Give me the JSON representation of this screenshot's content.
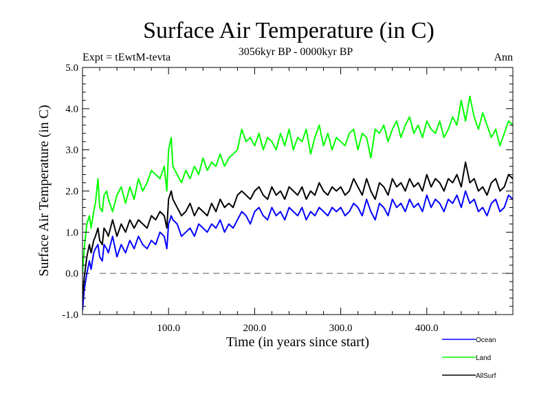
{
  "chart_data": {
    "type": "line",
    "title": "Surface Air Temperature (in C)",
    "subtitle": "3056kyr BP - 0000kyr BP",
    "left_label": "Expt = tEwtM-tevta",
    "right_label": "Ann",
    "xlabel": "Time (in years since start)",
    "ylabel": "Surface Air Temperature (in C)",
    "xlim": [
      0,
      500
    ],
    "ylim": [
      -1.0,
      5.0
    ],
    "x_ticks": [
      100,
      200,
      300,
      400
    ],
    "x_tick_labels": [
      "100.0",
      "200.0",
      "300.0",
      "400.0"
    ],
    "x_minor_step": 20,
    "y_ticks": [
      -1.0,
      0.0,
      1.0,
      2.0,
      3.0,
      4.0,
      5.0
    ],
    "y_tick_labels": [
      "-1.0",
      "0.0",
      "1.0",
      "2.0",
      "3.0",
      "4.0",
      "5.0"
    ],
    "y_minor_step": 0.2,
    "reference_line": {
      "y": 0.0,
      "style": "dashed",
      "color": "#555555"
    },
    "grid": false,
    "legend": {
      "placement": "bottom-right-outside"
    },
    "x": [
      0,
      2,
      5,
      8,
      10,
      13,
      15,
      18,
      20,
      23,
      25,
      28,
      30,
      35,
      40,
      45,
      50,
      55,
      60,
      65,
      70,
      75,
      80,
      85,
      90,
      95,
      98,
      100,
      103,
      105,
      110,
      115,
      120,
      125,
      130,
      135,
      140,
      145,
      150,
      155,
      160,
      165,
      170,
      175,
      180,
      185,
      190,
      195,
      200,
      205,
      210,
      215,
      220,
      225,
      230,
      235,
      240,
      245,
      250,
      255,
      260,
      265,
      270,
      275,
      280,
      285,
      290,
      295,
      300,
      305,
      310,
      315,
      320,
      325,
      330,
      335,
      340,
      345,
      350,
      355,
      360,
      365,
      370,
      375,
      380,
      385,
      390,
      395,
      400,
      405,
      410,
      415,
      420,
      425,
      430,
      435,
      440,
      445,
      450,
      455,
      460,
      465,
      470,
      475,
      480,
      485,
      490,
      495,
      500
    ],
    "series": [
      {
        "name": "Ocean",
        "color": "#0000ff",
        "values": [
          -0.9,
          -0.4,
          0.0,
          0.3,
          0.1,
          0.5,
          0.6,
          0.7,
          0.4,
          0.3,
          0.7,
          0.6,
          0.5,
          0.9,
          0.4,
          0.7,
          0.5,
          0.8,
          0.6,
          0.9,
          0.7,
          0.6,
          0.8,
          0.7,
          1.0,
          0.9,
          0.6,
          1.2,
          1.4,
          1.3,
          1.2,
          0.9,
          1.0,
          1.1,
          0.9,
          1.2,
          1.1,
          1.0,
          1.2,
          1.1,
          1.3,
          1.0,
          1.2,
          1.1,
          1.3,
          1.5,
          1.4,
          1.2,
          1.5,
          1.6,
          1.4,
          1.3,
          1.6,
          1.4,
          1.5,
          1.3,
          1.6,
          1.5,
          1.4,
          1.6,
          1.3,
          1.5,
          1.4,
          1.6,
          1.5,
          1.4,
          1.6,
          1.5,
          1.6,
          1.4,
          1.5,
          1.7,
          1.6,
          1.4,
          1.8,
          1.5,
          1.3,
          1.7,
          1.6,
          1.4,
          1.8,
          1.6,
          1.7,
          1.5,
          1.8,
          1.6,
          1.7,
          1.5,
          1.9,
          1.6,
          1.8,
          1.7,
          1.5,
          1.8,
          1.7,
          1.9,
          1.6,
          2.0,
          1.7,
          1.8,
          1.5,
          1.6,
          1.4,
          1.7,
          1.8,
          1.5,
          1.6,
          1.9,
          1.8
        ]
      },
      {
        "name": "Land",
        "color": "#00ff00",
        "values": [
          0.0,
          0.6,
          1.2,
          1.4,
          1.1,
          1.5,
          1.7,
          2.3,
          1.6,
          1.5,
          1.9,
          2.0,
          1.8,
          1.5,
          1.9,
          2.1,
          1.7,
          2.1,
          1.8,
          2.3,
          2.0,
          2.2,
          2.5,
          2.4,
          2.3,
          2.6,
          2.0,
          3.0,
          3.3,
          2.6,
          2.4,
          2.2,
          2.5,
          2.3,
          2.6,
          2.4,
          2.8,
          2.5,
          2.7,
          2.6,
          2.9,
          2.6,
          2.8,
          2.9,
          3.0,
          3.5,
          3.2,
          3.3,
          3.1,
          3.4,
          3.0,
          3.3,
          3.2,
          3.0,
          3.4,
          3.1,
          3.5,
          3.0,
          3.3,
          3.2,
          3.5,
          2.9,
          3.3,
          3.6,
          3.1,
          3.4,
          3.0,
          3.3,
          3.2,
          3.1,
          3.4,
          3.5,
          3.0,
          3.4,
          3.3,
          2.8,
          3.5,
          3.4,
          3.6,
          3.2,
          3.5,
          3.7,
          3.3,
          3.6,
          3.8,
          3.4,
          3.6,
          3.3,
          3.7,
          3.5,
          3.4,
          3.7,
          3.3,
          3.5,
          3.8,
          3.6,
          4.2,
          3.7,
          4.3,
          3.8,
          3.5,
          3.9,
          3.6,
          3.3,
          3.5,
          3.1,
          3.4,
          3.7,
          3.6
        ]
      },
      {
        "name": "AllSurf",
        "color": "#000000",
        "values": [
          -0.6,
          -0.1,
          0.4,
          0.7,
          0.5,
          0.8,
          0.9,
          1.1,
          0.8,
          0.7,
          1.1,
          1.0,
          0.9,
          1.3,
          0.9,
          1.2,
          1.0,
          1.3,
          1.1,
          1.3,
          1.2,
          1.1,
          1.4,
          1.3,
          1.5,
          1.4,
          1.1,
          1.8,
          2.0,
          1.8,
          1.6,
          1.4,
          1.5,
          1.7,
          1.4,
          1.6,
          1.5,
          1.4,
          1.7,
          1.5,
          1.8,
          1.6,
          1.7,
          1.6,
          1.9,
          2.0,
          1.9,
          1.8,
          2.0,
          2.1,
          1.9,
          1.8,
          2.1,
          1.9,
          2.0,
          1.8,
          2.1,
          2.0,
          1.9,
          2.1,
          1.8,
          2.0,
          1.9,
          2.2,
          2.0,
          1.9,
          2.1,
          2.0,
          2.1,
          1.9,
          2.0,
          2.3,
          2.1,
          1.9,
          2.3,
          2.0,
          1.8,
          2.2,
          2.1,
          1.9,
          2.3,
          2.1,
          2.2,
          2.0,
          2.3,
          2.1,
          2.2,
          2.0,
          2.4,
          2.1,
          2.3,
          2.2,
          2.0,
          2.3,
          2.2,
          2.4,
          2.1,
          2.7,
          2.2,
          2.3,
          2.0,
          2.1,
          1.9,
          2.2,
          2.3,
          2.0,
          2.1,
          2.4,
          2.3
        ]
      }
    ]
  }
}
